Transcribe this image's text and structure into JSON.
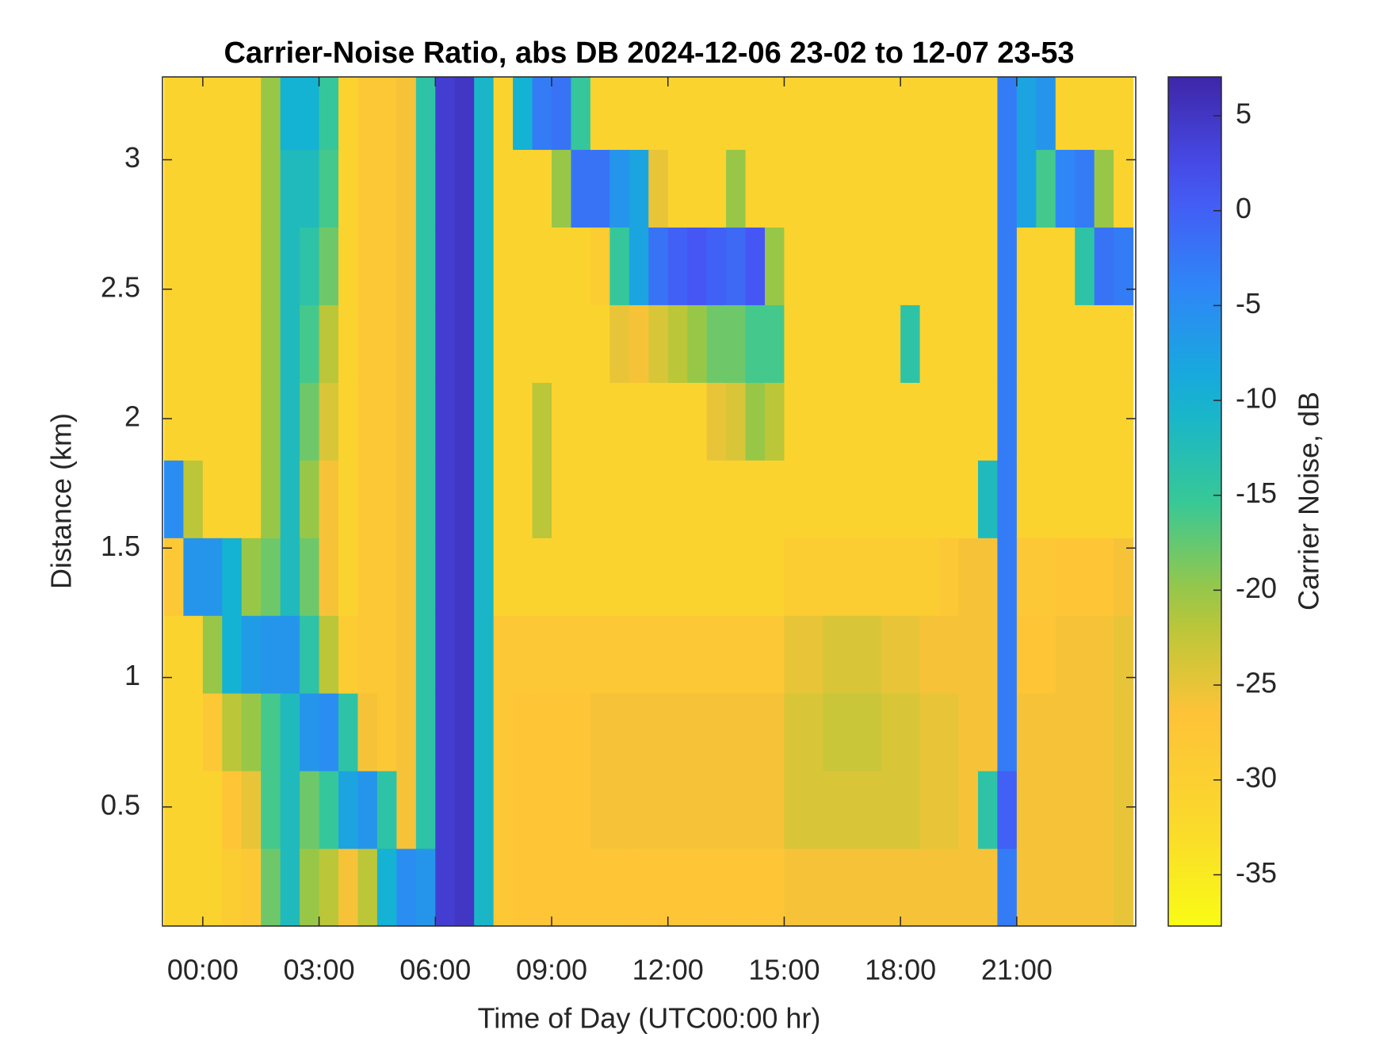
{
  "chart_data": {
    "type": "heatmap",
    "title": "Carrier-Noise Ratio, abs DB 2024-12-06 23-02 to 12-07 23-53",
    "x_label": "Time of Day (UTC00:00 hr)",
    "y_label": "Distance (km)",
    "colorbar_label": "Carrier Noise, dB",
    "colormap": "parula-reversed",
    "xlim": [
      -1.04,
      24.07
    ],
    "ylim": [
      0.04,
      3.32
    ],
    "clim": [
      -37.7,
      7.05
    ],
    "xticks": [
      {
        "value": 0,
        "label": "00:00"
      },
      {
        "value": 3,
        "label": "03:00"
      },
      {
        "value": 6,
        "label": "06:00"
      },
      {
        "value": 9,
        "label": "09:00"
      },
      {
        "value": 12,
        "label": "12:00"
      },
      {
        "value": 15,
        "label": "15:00"
      },
      {
        "value": 18,
        "label": "18:00"
      },
      {
        "value": 21,
        "label": "21:00"
      }
    ],
    "yticks": [
      0.5,
      1,
      1.5,
      2,
      2.5,
      3
    ],
    "cticks": [
      -35,
      -30,
      -25,
      -20,
      -15,
      -10,
      -5,
      0,
      5
    ],
    "x": [
      -0.75,
      -0.25,
      0.25,
      0.75,
      1.25,
      1.75,
      2.25,
      2.75,
      3.25,
      3.75,
      4.25,
      4.75,
      5.25,
      5.75,
      6.25,
      6.75,
      7.25,
      7.75,
      8.25,
      8.75,
      9.25,
      9.75,
      10.25,
      10.75,
      11.25,
      11.75,
      12.25,
      12.75,
      13.25,
      13.75,
      14.25,
      14.75,
      15.25,
      15.75,
      16.25,
      16.75,
      17.25,
      17.75,
      18.25,
      18.75,
      19.25,
      19.75,
      20.25,
      20.75,
      21.25,
      21.75,
      22.25,
      22.75,
      23.25,
      23.75
    ],
    "y": [
      0.19,
      0.49,
      0.79,
      1.09,
      1.39,
      1.69,
      1.99,
      2.29,
      2.59,
      2.89,
      3.19
    ],
    "values": [
      [
        -31,
        -31,
        -31,
        -31,
        -28,
        -5,
        -31,
        -31,
        -31,
        -31,
        -31
      ],
      [
        -31,
        -31,
        -31,
        -31,
        -6,
        -22,
        -31,
        -31,
        -31,
        -31,
        -31
      ],
      [
        -31,
        -31,
        -28,
        -20,
        -6,
        -31,
        -31,
        -31,
        -31,
        -31,
        -31
      ],
      [
        -29,
        -27,
        -22,
        -10,
        -10,
        -31,
        -31,
        -31,
        -31,
        -31,
        -31
      ],
      [
        -28,
        -25,
        -20,
        -7,
        -20,
        -31,
        -31,
        -31,
        -31,
        -31,
        -31
      ],
      [
        -18,
        -16,
        -16,
        -6,
        -18,
        -20,
        -20,
        -20,
        -20,
        -20,
        -20
      ],
      [
        -12,
        -12,
        -12,
        -6,
        -12,
        -12,
        -12,
        -12,
        -12,
        -12,
        -10
      ],
      [
        -20,
        -18,
        -6,
        -14,
        -18,
        -20,
        -18,
        -16,
        -14,
        -12,
        -10
      ],
      [
        -22,
        -15,
        -5,
        -22,
        -26,
        -26,
        -24,
        -22,
        -18,
        -16,
        -15
      ],
      [
        -26,
        -8,
        -14,
        -29,
        -31,
        -31,
        -31,
        -31,
        -31,
        -31,
        -31
      ],
      [
        -22,
        -6,
        -26,
        -28,
        -28,
        -28,
        -28,
        -28,
        -28,
        -28,
        -28
      ],
      [
        -10,
        -14,
        -28,
        -28,
        -28,
        -28,
        -28,
        -28,
        -28,
        -28,
        -28
      ],
      [
        -5,
        -26,
        -26,
        -26,
        -26,
        -26,
        -26,
        -26,
        -26,
        -26,
        -26
      ],
      [
        -6,
        -14,
        -14,
        -14,
        -14,
        -14,
        -14,
        -14,
        -14,
        -14,
        -14
      ],
      [
        4,
        4,
        4,
        4,
        4,
        4,
        4,
        4,
        4,
        4,
        4
      ],
      [
        5,
        5,
        5,
        5,
        5,
        5,
        5,
        5,
        5,
        5,
        5
      ],
      [
        -11,
        -11,
        -11,
        -11,
        -11,
        -11,
        -11,
        -11,
        -11,
        -11,
        -11
      ],
      [
        -28,
        -28,
        -28,
        -28,
        -31,
        -31,
        -31,
        -31,
        -31,
        -31,
        -31
      ],
      [
        -27,
        -27,
        -27,
        -28,
        -31,
        -31,
        -31,
        -31,
        -31,
        -31,
        -10
      ],
      [
        -27,
        -27,
        -27,
        -28,
        -31,
        -22,
        -22,
        -31,
        -31,
        -31,
        -3
      ],
      [
        -27,
        -27,
        -27,
        -28,
        -31,
        -31,
        -31,
        -31,
        -31,
        -20,
        -2
      ],
      [
        -27,
        -27,
        -27,
        -28,
        -31,
        -31,
        -31,
        -31,
        -31,
        -2,
        -15
      ],
      [
        -27,
        -26,
        -26,
        -28,
        -31,
        -31,
        -31,
        -31,
        -29,
        -2,
        -31
      ],
      [
        -27,
        -26,
        -26,
        -28,
        -31,
        -31,
        -31,
        -25,
        -15,
        -6,
        -31
      ],
      [
        -27,
        -26,
        -26,
        -28,
        -31,
        -31,
        -31,
        -26,
        -8,
        -8,
        -31
      ],
      [
        -27,
        -26,
        -26,
        -28,
        -31,
        -31,
        -31,
        -24,
        -2,
        -25,
        -31
      ],
      [
        -27,
        -26,
        -26,
        -28,
        -31,
        -31,
        -31,
        -22,
        0,
        -31,
        -31
      ],
      [
        -27,
        -26,
        -26,
        -28,
        -31,
        -31,
        -31,
        -20,
        1,
        -31,
        -31
      ],
      [
        -27,
        -26,
        -26,
        -28,
        -31,
        -31,
        -25,
        -18,
        0,
        -31,
        -31
      ],
      [
        -27,
        -26,
        -26,
        -28,
        -31,
        -31,
        -24,
        -18,
        -1,
        -20,
        -31
      ],
      [
        -27,
        -26,
        -26,
        -28,
        -31,
        -31,
        -20,
        -16,
        1,
        -31,
        -31
      ],
      [
        -27,
        -26,
        -26,
        -28,
        -31,
        -31,
        -22,
        -16,
        -20,
        -31,
        -31
      ],
      [
        -26,
        -24,
        -24,
        -25,
        -29,
        -31,
        -31,
        -31,
        -31,
        -31,
        -31
      ],
      [
        -26,
        -24,
        -24,
        -25,
        -29,
        -31,
        -31,
        -31,
        -31,
        -31,
        -31
      ],
      [
        -26,
        -24,
        -23,
        -24,
        -29,
        -31,
        -31,
        -31,
        -31,
        -31,
        -31
      ],
      [
        -26,
        -24,
        -23,
        -24,
        -29,
        -31,
        -31,
        -31,
        -31,
        -31,
        -31
      ],
      [
        -26,
        -24,
        -23,
        -24,
        -29,
        -31,
        -31,
        -31,
        -31,
        -31,
        -31
      ],
      [
        -26,
        -24,
        -24,
        -25,
        -29,
        -31,
        -31,
        -31,
        -31,
        -31,
        -31
      ],
      [
        -26,
        -24,
        -24,
        -25,
        -29,
        -31,
        -31,
        -14,
        -31,
        -31,
        -31
      ],
      [
        -26,
        -25,
        -25,
        -26,
        -29,
        -31,
        -31,
        -31,
        -31,
        -31,
        -31
      ],
      [
        -26,
        -25,
        -25,
        -26,
        -28,
        -31,
        -31,
        -31,
        -31,
        -31,
        -31
      ],
      [
        -26,
        -26,
        -26,
        -26,
        -26,
        -31,
        -31,
        -31,
        -31,
        -31,
        -31
      ],
      [
        -26,
        -14,
        -26,
        -26,
        -26,
        -12,
        -31,
        -31,
        -31,
        -31,
        -31
      ],
      [
        -3,
        0,
        -3,
        -3,
        -3,
        -3,
        -3,
        -3,
        -3,
        -3,
        -3
      ],
      [
        -26,
        -26,
        -26,
        -27,
        -28,
        -31,
        -31,
        -31,
        -31,
        -8,
        -8
      ],
      [
        -26,
        -26,
        -26,
        -27,
        -28,
        -31,
        -31,
        -31,
        -31,
        -16,
        -6
      ],
      [
        -26,
        -26,
        -26,
        -26,
        -27,
        -31,
        -31,
        -31,
        -31,
        -4,
        -31
      ],
      [
        -26,
        -26,
        -26,
        -26,
        -27,
        -31,
        -31,
        -31,
        -14,
        -3,
        -31
      ],
      [
        -26,
        -26,
        -26,
        -26,
        -27,
        -31,
        -31,
        -31,
        -2,
        -20,
        -31
      ],
      [
        -25,
        -25,
        -25,
        -25,
        -26,
        -31,
        -31,
        -31,
        -3,
        -31,
        -31
      ]
    ]
  }
}
